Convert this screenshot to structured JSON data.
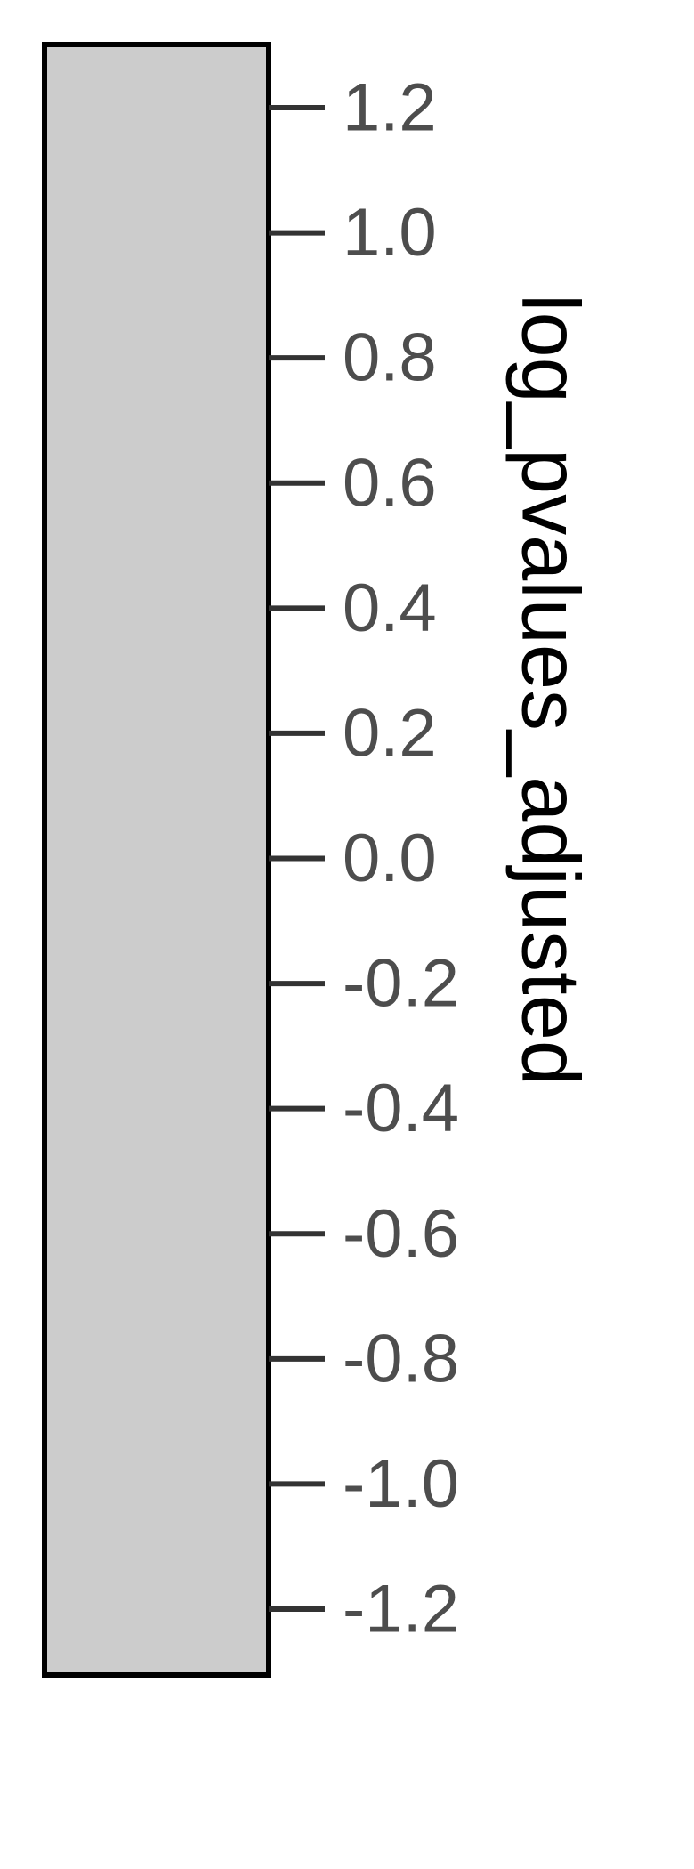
{
  "chart_data": {
    "type": "colorbar",
    "title": "log_pvalues_adjusted",
    "range": [
      -1.3,
      1.3
    ],
    "ticks": [
      1.2,
      1.0,
      0.8,
      0.6,
      0.4,
      0.2,
      0.0,
      -0.2,
      -0.4,
      -0.6,
      -0.8,
      -1.0,
      -1.2
    ],
    "tick_labels": [
      "1.2",
      "1.0",
      "0.8",
      "0.6",
      "0.4",
      "0.2",
      "0.0",
      "-0.2",
      "-0.4",
      "-0.6",
      "-0.8",
      "-1.0",
      "-1.2"
    ],
    "fill_color": "#cccccc",
    "border_color": "#000000",
    "tick_color": "#333333",
    "label_color": "#4d4d4d"
  }
}
